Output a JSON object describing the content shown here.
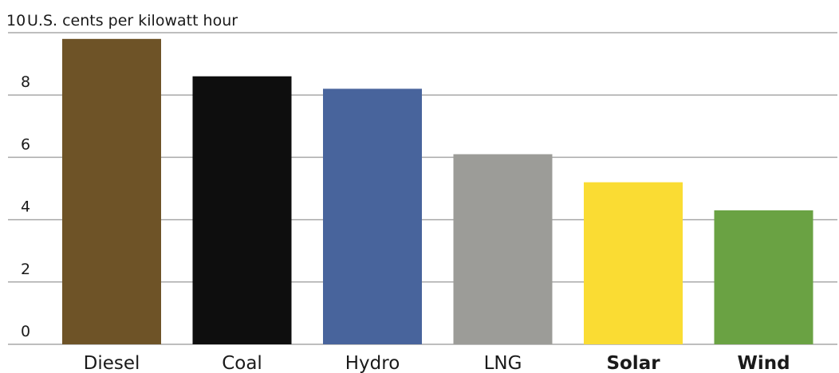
{
  "chart_data": {
    "type": "bar",
    "unit_label": "U.S. cents per kilowatt hour",
    "categories": [
      "Diesel",
      "Coal",
      "Hydro",
      "LNG",
      "Solar",
      "Wind"
    ],
    "values": [
      9.8,
      8.6,
      8.2,
      6.1,
      5.2,
      4.3
    ],
    "colors": [
      "#6e5327",
      "#0e0e0e",
      "#48649c",
      "#9c9c98",
      "#fadc33",
      "#6aa243"
    ],
    "bold_categories": [
      "Solar",
      "Wind"
    ],
    "ylim": [
      0,
      10
    ],
    "yticks": [
      0,
      2,
      4,
      6,
      8,
      10
    ],
    "grid": true,
    "xlabel": "",
    "ylabel": ""
  }
}
